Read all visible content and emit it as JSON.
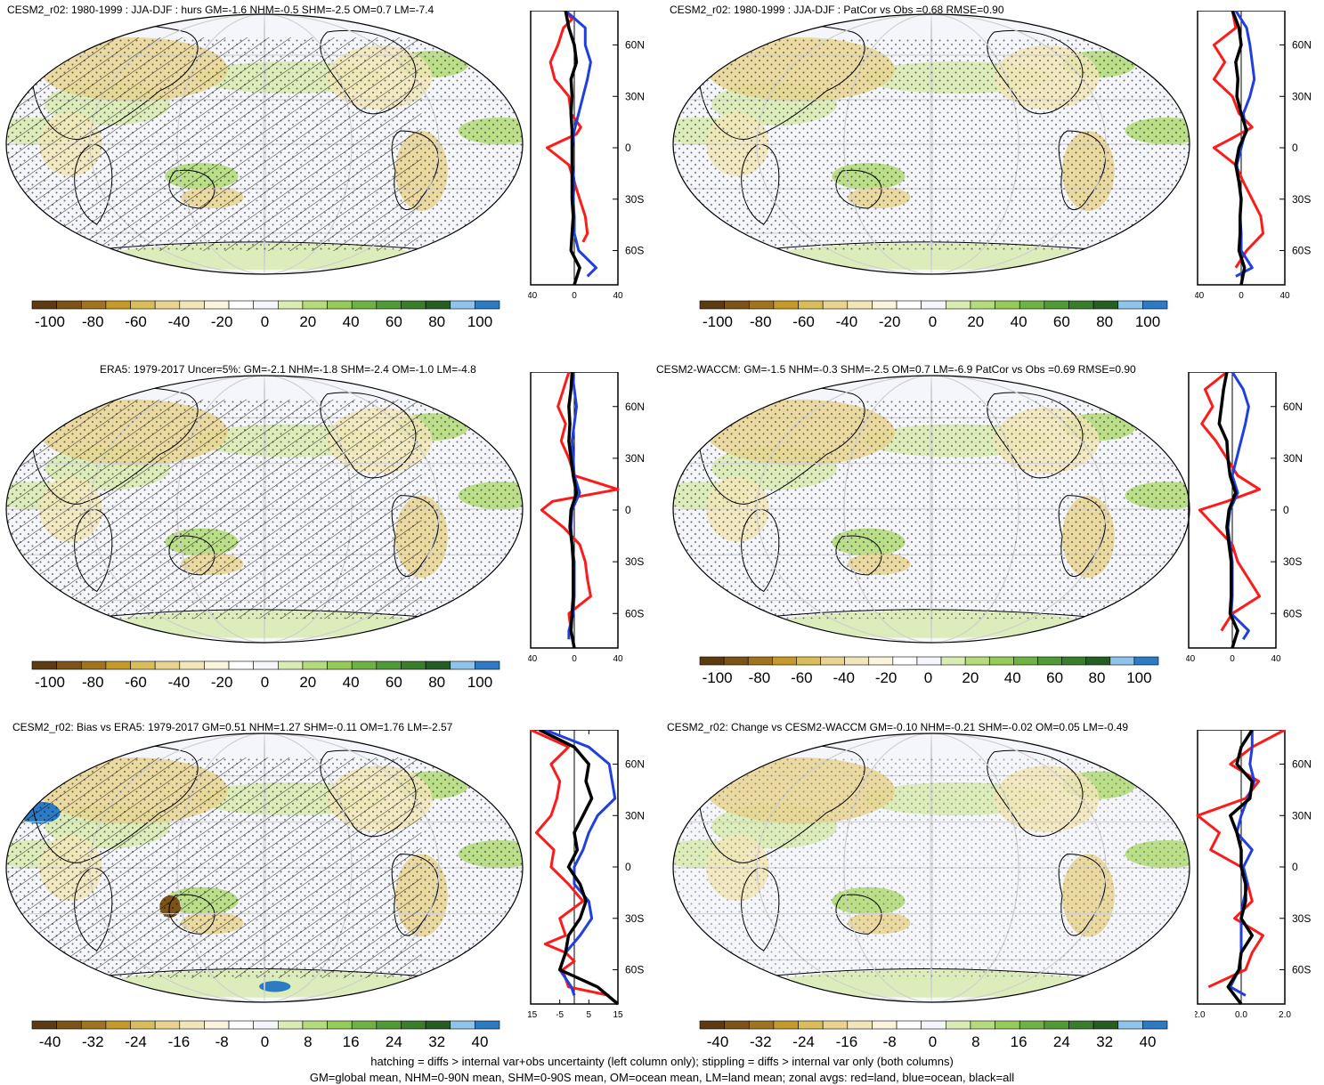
{
  "footer": {
    "line1": "hatching = diffs > internal var+obs uncertainty (left column only); stippling = diffs > internal var only (both columns)",
    "line2": "GM=global mean, NHM=0-90N mean, SHM=0-90S mean, OM=ocean mean, LM=land mean; zonal avgs: red=land, blue=ocean, black=all"
  },
  "colors": {
    "scale": [
      "#5c3b12",
      "#7e5318",
      "#a0731f",
      "#c49a2a",
      "#d9bd5a",
      "#e8d48f",
      "#f1e6b9",
      "#faf4dc",
      "#ffffff",
      "#f4f6fb",
      "#d9ecb4",
      "#b5dc7c",
      "#95cb58",
      "#6fb244",
      "#4f9a36",
      "#3a7d2c",
      "#245e22",
      "#8fc3ea",
      "#2c7bc4"
    ],
    "land": "#d8a040",
    "ocean": "#1f3fe0",
    "all": "#000000",
    "map_bg": "#f4f6fb"
  },
  "panels": [
    {
      "title": "CESM2_r02: 1980-1999 : JJA-DJF : hurs GM=-1.6 NHM=-0.5 SHM=-2.5 OM=0.7 LM=-7.4",
      "cbar_ticks": [
        "-100",
        "-80",
        "-60",
        "-40",
        "-20",
        "0",
        "20",
        "40",
        "60",
        "80",
        "100"
      ],
      "zonal_xticks": [
        "-40",
        "0",
        "40"
      ],
      "zonal_unit": "%",
      "hatched": true,
      "chart_data": {
        "type": "line",
        "xlim": [
          -40,
          40
        ],
        "ylim": [
          -80,
          80
        ],
        "lat_ticks": [
          "60N",
          "30N",
          "0",
          "30S",
          "60S"
        ],
        "series": [
          {
            "name": "land",
            "y": [
              80,
              75,
              70,
              60,
              50,
              40,
              30,
              20,
              12,
              8,
              0,
              -10,
              -20,
              -30,
              -40,
              -50,
              -55
            ],
            "x": [
              -8,
              -2,
              -10,
              -15,
              -22,
              -18,
              -5,
              -3,
              6,
              2,
              -25,
              -5,
              0,
              5,
              10,
              12,
              8
            ]
          },
          {
            "name": "ocean",
            "y": [
              80,
              70,
              60,
              50,
              40,
              30,
              20,
              10,
              0,
              -10,
              -20,
              -30,
              -40,
              -50,
              -60,
              -70,
              -75
            ],
            "x": [
              -8,
              10,
              10,
              15,
              12,
              8,
              4,
              0,
              -2,
              -2,
              0,
              -1,
              0,
              0,
              4,
              20,
              12
            ]
          },
          {
            "name": "all",
            "y": [
              80,
              70,
              60,
              50,
              40,
              30,
              20,
              10,
              0,
              -10,
              -20,
              -30,
              -40,
              -50,
              -60,
              -70,
              -80
            ],
            "x": [
              -8,
              -5,
              0,
              2,
              -3,
              -2,
              -3,
              -2,
              -2,
              -2,
              -2,
              -2,
              -1,
              -2,
              -3,
              5,
              0
            ]
          }
        ]
      }
    },
    {
      "title": "CESM2_r02: 1980-1999 : JJA-DJF : PatCor vs Obs =0.68 RMSE=0.90",
      "cbar_ticks": [
        "-100",
        "-80",
        "-60",
        "-40",
        "-20",
        "0",
        "20",
        "40",
        "60",
        "80",
        "100"
      ],
      "zonal_xticks": [
        "-40",
        "0",
        "40"
      ],
      "zonal_unit": "%",
      "hatched": false,
      "chart_data": {
        "type": "line",
        "xlim": [
          -40,
          40
        ],
        "ylim": [
          -80,
          80
        ],
        "lat_ticks": [
          "60N",
          "30N",
          "0",
          "30S",
          "60S"
        ],
        "series": [
          {
            "name": "land",
            "y": [
              80,
              70,
              60,
              50,
              40,
              30,
              20,
              12,
              5,
              0,
              -10,
              -20,
              -30,
              -40,
              -50,
              -60,
              -70
            ],
            "x": [
              -8,
              -5,
              -25,
              -15,
              -25,
              -8,
              -2,
              10,
              -10,
              -25,
              -5,
              2,
              10,
              18,
              20,
              5,
              -5
            ]
          },
          {
            "name": "ocean",
            "y": [
              80,
              70,
              60,
              50,
              40,
              30,
              20,
              10,
              0,
              -10,
              -20,
              -30,
              -40,
              -50,
              -60,
              -70,
              -75
            ],
            "x": [
              -5,
              5,
              8,
              10,
              12,
              8,
              2,
              4,
              0,
              -4,
              -2,
              0,
              -1,
              0,
              0,
              10,
              -5
            ]
          },
          {
            "name": "all",
            "y": [
              80,
              70,
              60,
              50,
              40,
              30,
              20,
              10,
              0,
              -10,
              -20,
              -30,
              -40,
              -50,
              -60,
              -70,
              -80
            ],
            "x": [
              -8,
              -2,
              0,
              -5,
              -3,
              -4,
              0,
              5,
              -2,
              -5,
              -2,
              0,
              -1,
              -1,
              -2,
              3,
              0
            ]
          }
        ]
      }
    },
    {
      "title": "ERA5: 1979-2017 Uncer=5%: GM=-2.1 NHM=-1.8 SHM=-2.4 OM=-1.0 LM=-4.8",
      "cbar_ticks": [
        "-100",
        "-80",
        "-60",
        "-40",
        "-20",
        "0",
        "20",
        "40",
        "60",
        "80",
        "100"
      ],
      "zonal_xticks": [
        "-40",
        "0",
        "40"
      ],
      "zonal_unit": "%",
      "hatched": true,
      "chart_data": {
        "type": "line",
        "xlim": [
          -40,
          40
        ],
        "ylim": [
          -80,
          80
        ],
        "lat_ticks": [
          "60N",
          "30N",
          "0",
          "30S",
          "60S"
        ],
        "series": [
          {
            "name": "land",
            "y": [
              80,
              70,
              60,
              50,
              40,
              30,
              20,
              12,
              5,
              0,
              -10,
              -20,
              -30,
              -40,
              -50,
              -60,
              -70
            ],
            "x": [
              -5,
              -10,
              -15,
              -8,
              -12,
              -5,
              0,
              40,
              -20,
              -30,
              -10,
              5,
              10,
              12,
              15,
              -5,
              -3
            ]
          },
          {
            "name": "ocean",
            "y": [
              80,
              70,
              60,
              50,
              40,
              30,
              20,
              10,
              0,
              -10,
              -20,
              -30,
              -40,
              -50,
              -60,
              -70,
              -75
            ],
            "x": [
              -2,
              0,
              2,
              0,
              -2,
              -1,
              0,
              5,
              -2,
              -3,
              -2,
              0,
              0,
              0,
              -1,
              -5,
              -5
            ]
          },
          {
            "name": "all",
            "y": [
              80,
              70,
              60,
              50,
              40,
              30,
              20,
              10,
              0,
              -10,
              -20,
              -30,
              -40,
              -50,
              -60,
              -70,
              -80
            ],
            "x": [
              -2,
              -3,
              -5,
              -4,
              -5,
              -3,
              -1,
              2,
              -3,
              -4,
              -2,
              -1,
              -1,
              -1,
              -2,
              -3,
              0
            ]
          }
        ]
      }
    },
    {
      "title": "CESM2-WACCM: GM=-1.5 NHM=-0.3 SHM=-2.5 OM=0.7 LM=-6.9 PatCor vs Obs =0.69 RMSE=0.90",
      "cbar_ticks": [
        "-100",
        "-80",
        "-60",
        "-40",
        "-20",
        "0",
        "20",
        "40",
        "60",
        "80",
        "100"
      ],
      "zonal_xticks": [
        "-40",
        "0",
        "40"
      ],
      "zonal_unit": "%",
      "hatched": false,
      "chart_data": {
        "type": "line",
        "xlim": [
          -40,
          40
        ],
        "ylim": [
          -80,
          80
        ],
        "lat_ticks": [
          "60N",
          "30N",
          "0",
          "30S",
          "60S"
        ],
        "series": [
          {
            "name": "land",
            "y": [
              80,
              70,
              60,
              50,
              40,
              30,
              20,
              12,
              5,
              0,
              -10,
              -20,
              -30,
              -40,
              -50,
              -60,
              -70
            ],
            "x": [
              -5,
              -25,
              -18,
              -28,
              -15,
              -5,
              5,
              25,
              -5,
              -30,
              -15,
              0,
              5,
              15,
              25,
              0,
              -10
            ]
          },
          {
            "name": "ocean",
            "y": [
              80,
              70,
              60,
              50,
              40,
              30,
              20,
              10,
              0,
              -10,
              -20,
              -30,
              -40,
              -50,
              -60,
              -70,
              -75
            ],
            "x": [
              0,
              10,
              15,
              12,
              8,
              4,
              0,
              5,
              -2,
              -4,
              -2,
              0,
              0,
              0,
              -1,
              15,
              10
            ]
          },
          {
            "name": "all",
            "y": [
              80,
              70,
              60,
              50,
              40,
              30,
              20,
              10,
              0,
              -10,
              -20,
              -30,
              -40,
              -50,
              -60,
              -70,
              -80
            ],
            "x": [
              -5,
              -8,
              -10,
              -12,
              -5,
              -4,
              -2,
              3,
              -3,
              -5,
              -3,
              -1,
              -1,
              -1,
              -2,
              5,
              0
            ]
          }
        ]
      }
    },
    {
      "title": "CESM2_r02: Bias vs ERA5: 1979-2017 GM=0.51 NHM=1.27 SHM=-0.11 OM=1.76 LM=-2.57",
      "cbar_ticks": [
        "-40",
        "-32",
        "-24",
        "-16",
        "-8",
        "0",
        "8",
        "16",
        "24",
        "32",
        "40"
      ],
      "zonal_xticks": [
        "-15",
        "-5",
        "5",
        "15"
      ],
      "zonal_unit": "%",
      "hatched": true,
      "chart_data": {
        "type": "line",
        "xlim": [
          -15,
          15
        ],
        "ylim": [
          -80,
          80
        ],
        "lat_ticks": [
          "60N",
          "30N",
          "0",
          "30S",
          "60S"
        ],
        "series": [
          {
            "name": "land",
            "y": [
              80,
              70,
              60,
              50,
              40,
              30,
              20,
              10,
              0,
              -10,
              -20,
              -30,
              -40,
              -45,
              -50,
              -55,
              -60,
              -70,
              -75
            ],
            "x": [
              -15,
              -2,
              -8,
              -5,
              -6,
              -8,
              -13,
              -7,
              -8,
              -2,
              3,
              -5,
              -3,
              -10,
              -3,
              0,
              -4,
              -2,
              12
            ]
          },
          {
            "name": "ocean",
            "y": [
              80,
              70,
              60,
              50,
              40,
              30,
              20,
              10,
              0,
              -10,
              -20,
              -30,
              -40,
              -50,
              -60,
              -70,
              -75
            ],
            "x": [
              -10,
              5,
              12,
              13,
              14,
              8,
              5,
              3,
              0,
              0,
              5,
              6,
              2,
              -3,
              -5,
              -1,
              0
            ]
          },
          {
            "name": "all",
            "y": [
              80,
              70,
              60,
              50,
              40,
              30,
              20,
              10,
              0,
              -10,
              -20,
              -30,
              -40,
              -50,
              -60,
              -70,
              -80
            ],
            "x": [
              -12,
              0,
              5,
              4,
              6,
              3,
              0,
              1,
              -2,
              2,
              4,
              2,
              -2,
              -3,
              -5,
              8,
              15
            ]
          }
        ]
      }
    },
    {
      "title": "CESM2_r02: Change vs CESM2-WACCM GM=-0.10 NHM=-0.21 SHM=-0.02 OM=0.05 LM=-0.49",
      "cbar_ticks": [
        "-40",
        "-32",
        "-24",
        "-16",
        "-8",
        "0",
        "8",
        "16",
        "24",
        "32",
        "40"
      ],
      "zonal_xticks": [
        "-2.0",
        "0.0",
        "2.0"
      ],
      "zonal_unit": "%",
      "hatched": false,
      "chart_data": {
        "type": "line",
        "xlim": [
          -2,
          2
        ],
        "ylim": [
          -80,
          80
        ],
        "lat_ticks": [
          "60N",
          "30N",
          "0",
          "30S",
          "60S"
        ],
        "series": [
          {
            "name": "land",
            "y": [
              80,
              70,
              60,
              50,
              40,
              30,
              20,
              10,
              0,
              -10,
              -20,
              -30,
              -40,
              -50,
              -60,
              -70
            ],
            "x": [
              2,
              0.5,
              -0.5,
              0.8,
              0.2,
              -2,
              -1,
              -1.4,
              0,
              0.3,
              0.5,
              -0.3,
              1,
              0.5,
              0.2,
              -1.5
            ]
          },
          {
            "name": "ocean",
            "y": [
              80,
              70,
              60,
              50,
              40,
              30,
              20,
              10,
              0,
              -10,
              -20,
              -30,
              -40,
              -50,
              -60,
              -70,
              -75
            ],
            "x": [
              0.5,
              0.5,
              0.4,
              0.6,
              0.3,
              0,
              -0.2,
              0.5,
              0.1,
              0.3,
              0.1,
              0,
              0,
              0,
              -0.1,
              -0.5,
              0.2
            ]
          },
          {
            "name": "all",
            "y": [
              80,
              70,
              60,
              50,
              40,
              30,
              20,
              10,
              0,
              -10,
              -20,
              -30,
              -40,
              -50,
              -60,
              -70,
              -80
            ],
            "x": [
              0.5,
              0,
              -0.2,
              0.5,
              0.4,
              -0.5,
              -0.2,
              0,
              0,
              0.2,
              0.2,
              0,
              0.5,
              0,
              -0.1,
              -0.6,
              0
            ]
          }
        ]
      }
    }
  ]
}
